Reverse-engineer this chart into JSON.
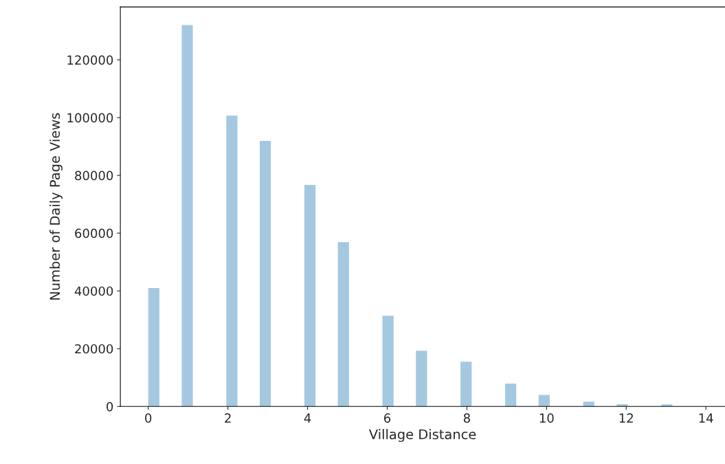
{
  "chart_data": {
    "type": "histogram",
    "xlabel": "Village Distance",
    "ylabel": "Number of Daily Page Views",
    "bins": [
      0,
      0.28,
      0.56,
      0.84,
      1.12,
      1.4,
      1.68,
      1.96,
      2.24,
      2.52,
      2.8,
      3.08,
      3.36,
      3.64,
      3.92,
      4.2,
      4.48,
      4.76,
      5.04,
      5.32,
      5.6,
      5.88,
      6.16,
      6.44,
      6.72,
      7.0,
      7.28,
      7.56,
      7.84,
      8.12,
      8.4,
      8.68,
      8.96,
      9.24,
      9.52,
      9.8,
      10.08,
      10.36,
      10.64,
      10.92,
      11.2,
      11.48,
      11.76,
      12.04,
      12.32,
      12.6,
      12.88,
      13.16,
      13.44,
      13.72,
      14
    ],
    "values": [
      41000,
      0,
      0,
      132000,
      0,
      0,
      0,
      100700,
      0,
      0,
      91900,
      0,
      0,
      0,
      76700,
      0,
      0,
      56900,
      0,
      0,
      0,
      31400,
      0,
      0,
      19300,
      0,
      0,
      0,
      15500,
      0,
      0,
      0,
      7900,
      0,
      0,
      4000,
      0,
      0,
      0,
      1700,
      0,
      0,
      800,
      0,
      0,
      0,
      700,
      0,
      0,
      0
    ],
    "color": "#a5c8e1",
    "xlim": [
      -0.7,
      14.48
    ],
    "xticks": [
      0,
      2,
      4,
      6,
      8,
      10,
      12,
      14
    ],
    "ylim": [
      0,
      138300
    ],
    "yticks": [
      0,
      20000,
      40000,
      60000,
      80000,
      100000,
      120000
    ],
    "grid": false,
    "legend": false
  }
}
